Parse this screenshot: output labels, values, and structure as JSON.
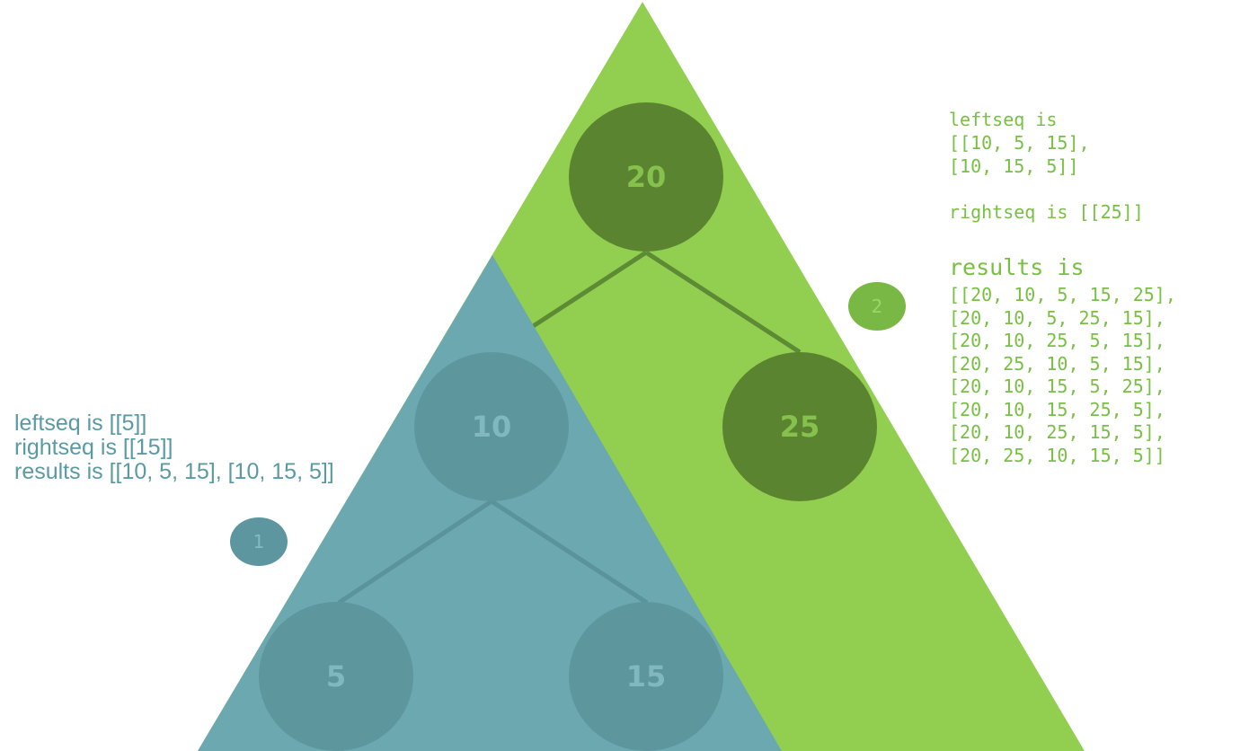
{
  "colors": {
    "green_triangle": "#92cf50",
    "blue_triangle": "#6ca8b0",
    "green_node": "#5b8431",
    "green_node_text": "#86c14e",
    "blue_node": "#5e969e",
    "blue_node_text": "#81b7be",
    "green_edge": "#5d8a34",
    "blue_edge": "#5a939b",
    "step1_fill": "#5d969f",
    "step1_text": "#85bac1",
    "step2_fill": "#79b845",
    "step2_text": "#9bd56a",
    "left_note_text": "#5a9aa3",
    "right_note_text": "#78bf43"
  },
  "tree": {
    "nodes": [
      {
        "id": "n20",
        "value": "20"
      },
      {
        "id": "n10",
        "value": "10"
      },
      {
        "id": "n25",
        "value": "25"
      },
      {
        "id": "n5",
        "value": "5"
      },
      {
        "id": "n15",
        "value": "15"
      }
    ],
    "edges": [
      {
        "from": "20",
        "to": "10"
      },
      {
        "from": "20",
        "to": "25"
      },
      {
        "from": "10",
        "to": "5"
      },
      {
        "from": "10",
        "to": "15"
      }
    ]
  },
  "steps": [
    {
      "label": "1"
    },
    {
      "label": "2"
    }
  ],
  "left_note": {
    "line1": "leftseq is [[5]]",
    "line2": "rightseq is [[15]]",
    "line3": "results is [[10, 5, 15], [10, 15, 5]]"
  },
  "right_note": {
    "leftseq_line1": "leftseq is",
    "leftseq_line2": "[[10, 5, 15],",
    "leftseq_line3": "[10, 15, 5]]",
    "rightseq": "rightseq is [[25]]",
    "results_title": "results is",
    "results_lines": [
      "[[20, 10, 5, 15, 25],",
      "[20, 10, 5, 25, 15],",
      "[20, 10, 25, 5, 15],",
      "[20, 25, 10, 5, 15],",
      "[20, 10, 15, 5, 25],",
      "[20, 10, 15, 25, 5],",
      "[20, 10, 25, 15, 5],",
      "[20, 25, 10, 15, 5]]"
    ]
  }
}
